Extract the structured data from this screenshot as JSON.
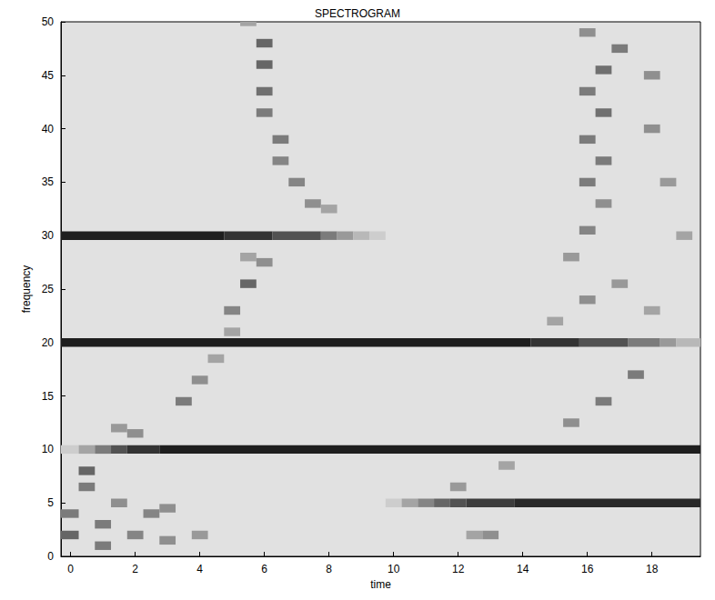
{
  "chart_data": {
    "type": "heatmap",
    "title": "SPECTROGRAM",
    "x_label": "time",
    "y_label": "frequency",
    "xlim": [
      -0.3,
      19.5
    ],
    "xticks": [
      0,
      2,
      4,
      6,
      8,
      10,
      12,
      14,
      16,
      18
    ],
    "ylim": [
      0,
      50
    ],
    "yticks": [
      0,
      5,
      10,
      15,
      20,
      25,
      30,
      35,
      40,
      45,
      50
    ],
    "grid": false,
    "clim": [
      0,
      1
    ],
    "freq_width": 0.8,
    "cells": [
      [
        -0.3,
        4.75,
        30,
        0.95
      ],
      [
        4.75,
        6.25,
        30,
        0.85
      ],
      [
        6.25,
        7.75,
        30,
        0.7
      ],
      [
        7.75,
        8.25,
        30,
        0.5
      ],
      [
        8.25,
        8.75,
        30,
        0.35
      ],
      [
        8.75,
        9.25,
        30,
        0.2
      ],
      [
        9.25,
        9.75,
        30,
        0.1
      ],
      [
        -0.3,
        14.25,
        20,
        0.95
      ],
      [
        14.25,
        15.75,
        20,
        0.85
      ],
      [
        15.75,
        17.25,
        20,
        0.7
      ],
      [
        17.25,
        18.25,
        20,
        0.5
      ],
      [
        18.25,
        18.75,
        20,
        0.35
      ],
      [
        18.75,
        19.5,
        20,
        0.2
      ],
      [
        -0.3,
        0.25,
        10,
        0.1
      ],
      [
        0.25,
        0.75,
        10,
        0.3
      ],
      [
        0.75,
        1.25,
        10,
        0.5
      ],
      [
        1.25,
        1.75,
        10,
        0.7
      ],
      [
        1.75,
        2.75,
        10,
        0.85
      ],
      [
        2.75,
        19.5,
        10,
        0.95
      ],
      [
        9.75,
        10.25,
        5,
        0.1
      ],
      [
        10.25,
        10.75,
        5,
        0.3
      ],
      [
        10.75,
        11.25,
        5,
        0.45
      ],
      [
        11.25,
        11.75,
        5,
        0.6
      ],
      [
        11.75,
        12.25,
        5,
        0.7
      ],
      [
        12.25,
        13.75,
        5,
        0.8
      ],
      [
        13.75,
        19.5,
        5,
        0.9
      ],
      [
        -0.3,
        0.25,
        2,
        0.6
      ],
      [
        -0.3,
        0.25,
        4,
        0.5
      ],
      [
        0.25,
        0.75,
        6.5,
        0.5
      ],
      [
        0.25,
        0.75,
        8,
        0.6
      ],
      [
        0.75,
        1.25,
        3,
        0.5
      ],
      [
        0.75,
        1.25,
        1,
        0.5
      ],
      [
        1.25,
        1.75,
        5,
        0.4
      ],
      [
        1.25,
        1.75,
        12,
        0.35
      ],
      [
        1.75,
        2.25,
        2,
        0.45
      ],
      [
        1.75,
        2.25,
        11.5,
        0.4
      ],
      [
        2.25,
        2.75,
        4,
        0.45
      ],
      [
        2.75,
        3.25,
        4.5,
        0.4
      ],
      [
        2.75,
        3.25,
        1.5,
        0.4
      ],
      [
        3.25,
        3.75,
        14.5,
        0.5
      ],
      [
        3.75,
        4.25,
        2,
        0.35
      ],
      [
        3.75,
        4.25,
        16.5,
        0.4
      ],
      [
        4.25,
        4.75,
        18.5,
        0.3
      ],
      [
        4.75,
        5.25,
        21,
        0.3
      ],
      [
        4.75,
        5.25,
        23,
        0.45
      ],
      [
        5.25,
        5.75,
        25.5,
        0.6
      ],
      [
        5.25,
        5.75,
        28,
        0.3
      ],
      [
        5.75,
        6.25,
        48,
        0.6
      ],
      [
        5.75,
        6.25,
        46,
        0.6
      ],
      [
        5.75,
        6.25,
        43.5,
        0.55
      ],
      [
        5.75,
        6.25,
        41.5,
        0.5
      ],
      [
        6.25,
        6.75,
        39,
        0.5
      ],
      [
        6.25,
        6.75,
        37,
        0.45
      ],
      [
        6.75,
        7.25,
        35,
        0.45
      ],
      [
        7.25,
        7.75,
        33,
        0.4
      ],
      [
        7.75,
        8.25,
        32.5,
        0.3
      ],
      [
        5.75,
        6.25,
        27.5,
        0.4
      ],
      [
        5.25,
        5.75,
        50,
        0.3
      ],
      [
        11.75,
        12.25,
        6.5,
        0.35
      ],
      [
        12.25,
        12.75,
        2,
        0.3
      ],
      [
        12.75,
        13.25,
        2,
        0.4
      ],
      [
        13.25,
        13.75,
        8.5,
        0.3
      ],
      [
        15.25,
        15.75,
        12.5,
        0.4
      ],
      [
        16.25,
        16.75,
        14.5,
        0.5
      ],
      [
        17.25,
        17.75,
        17,
        0.5
      ],
      [
        14.75,
        15.25,
        22,
        0.3
      ],
      [
        15.75,
        16.25,
        24,
        0.4
      ],
      [
        16.75,
        17.25,
        25.5,
        0.35
      ],
      [
        17.75,
        18.25,
        23,
        0.3
      ],
      [
        15.25,
        15.75,
        28,
        0.35
      ],
      [
        15.75,
        16.25,
        30.5,
        0.45
      ],
      [
        16.25,
        16.75,
        33,
        0.4
      ],
      [
        15.75,
        16.25,
        35,
        0.5
      ],
      [
        16.25,
        16.75,
        37,
        0.5
      ],
      [
        15.75,
        16.25,
        39,
        0.5
      ],
      [
        16.25,
        16.75,
        41.5,
        0.55
      ],
      [
        15.75,
        16.25,
        43.5,
        0.5
      ],
      [
        16.25,
        16.75,
        45.5,
        0.55
      ],
      [
        16.75,
        17.25,
        47.5,
        0.5
      ],
      [
        15.75,
        16.25,
        49,
        0.4
      ],
      [
        17.75,
        18.25,
        40,
        0.4
      ],
      [
        18.25,
        18.75,
        35,
        0.35
      ],
      [
        18.75,
        19.25,
        30,
        0.3
      ],
      [
        17.75,
        18.25,
        45,
        0.4
      ]
    ]
  }
}
